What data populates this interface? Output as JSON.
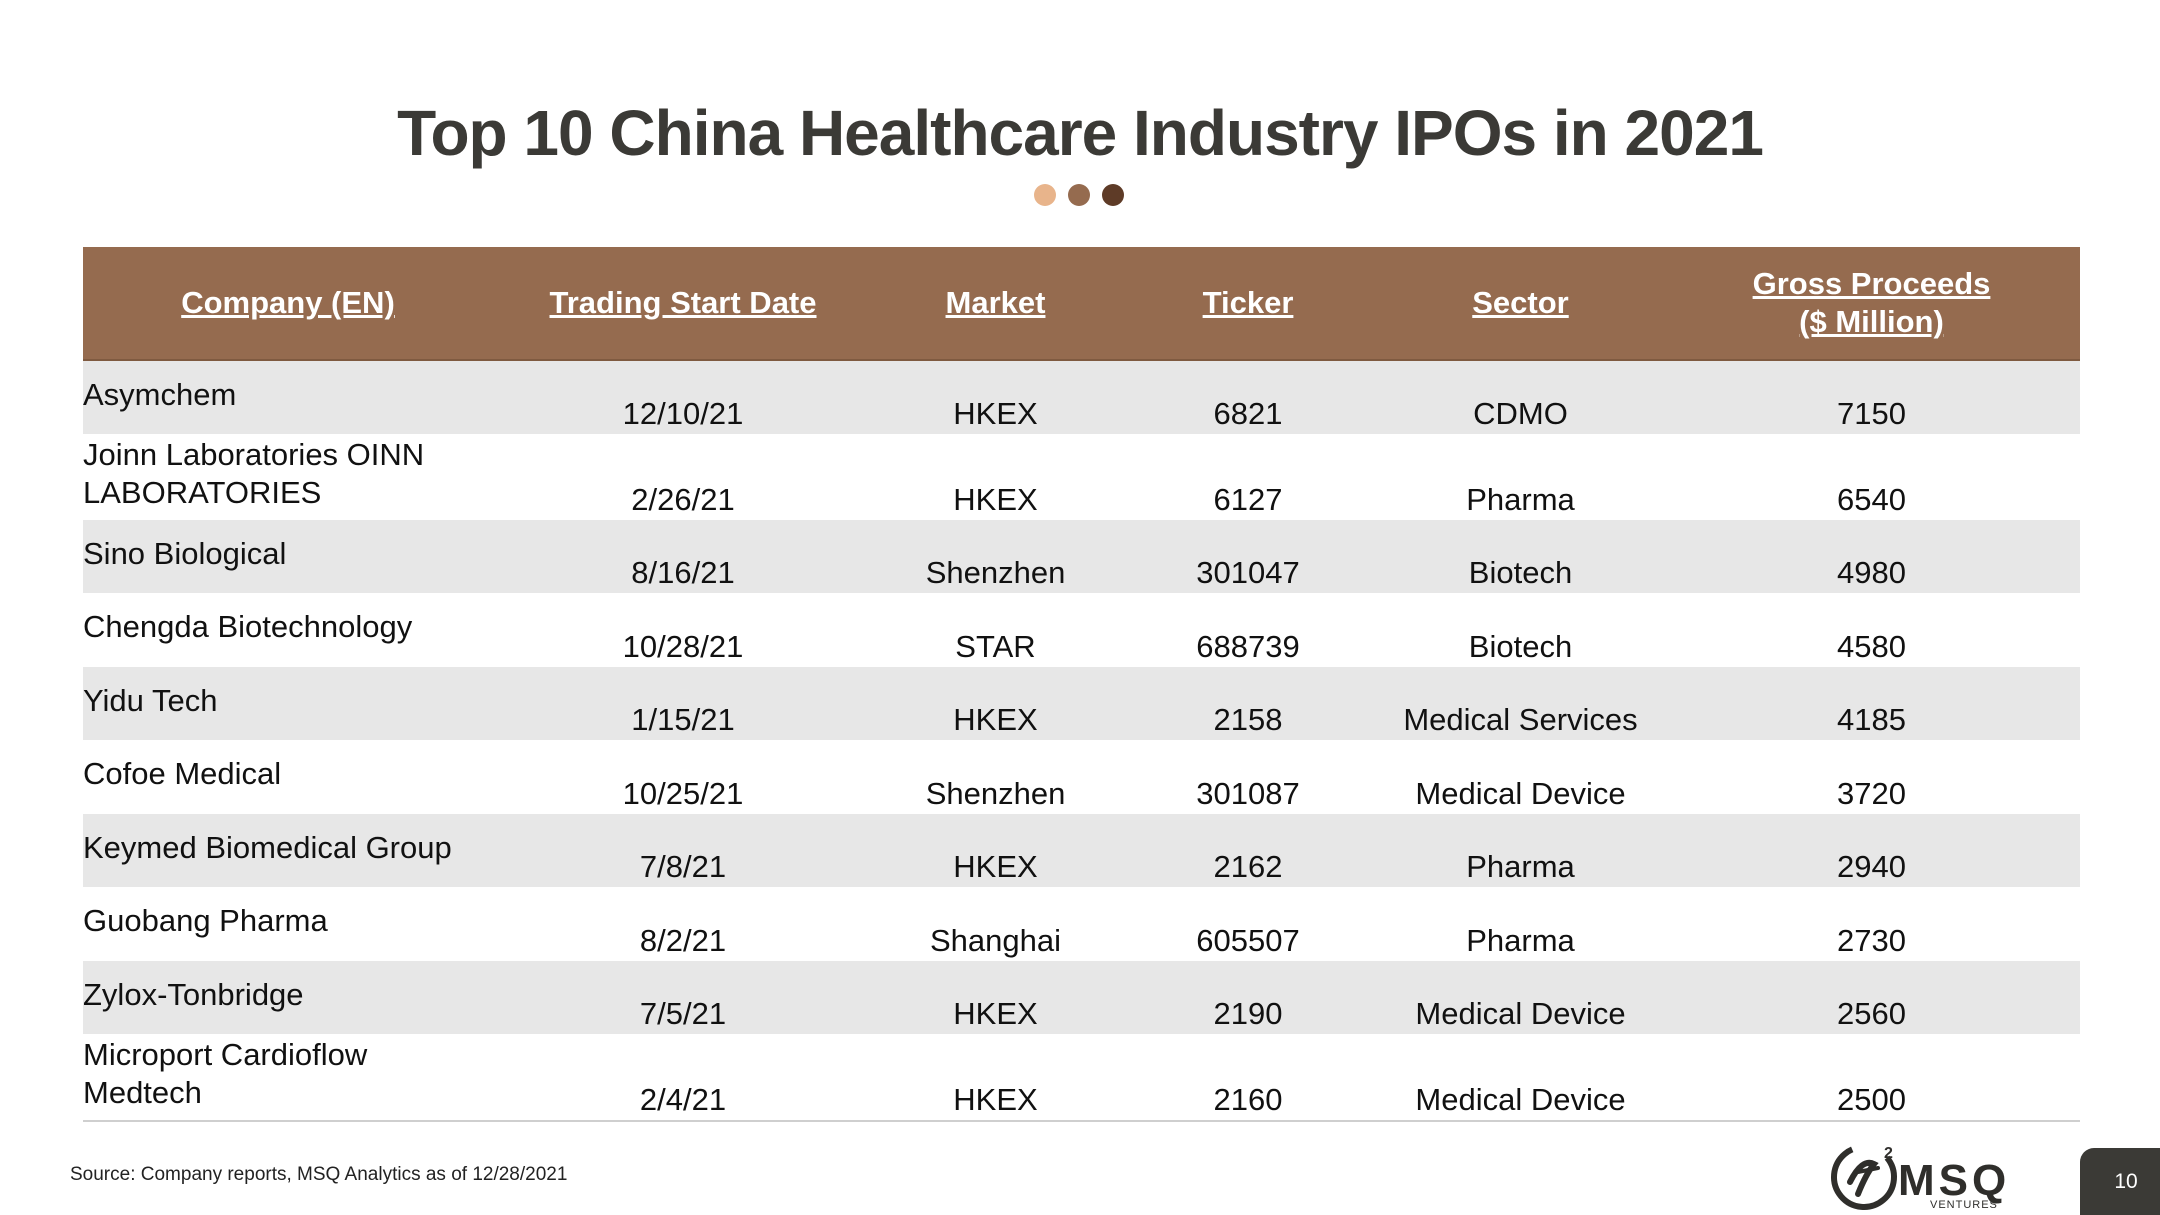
{
  "slide": {
    "title": "Top 10 China Healthcare Industry IPOs in 2021",
    "dot_colors": [
      "#e8b48b",
      "#956b4f",
      "#5e3b27"
    ],
    "source": "Source: Company reports, MSQ Analytics as of 12/28/2021",
    "page_number": "10",
    "logo": {
      "name": "MSQ",
      "sub": "VENTURES",
      "mark": "msq-ventures-logo"
    }
  },
  "table": {
    "headers": [
      {
        "line1": "Company (EN)",
        "line2": ""
      },
      {
        "line1": "Trading Start Date",
        "line2": ""
      },
      {
        "line1": "Market",
        "line2": ""
      },
      {
        "line1": "Ticker",
        "line2": ""
      },
      {
        "line1": "Sector",
        "line2": ""
      },
      {
        "line1": "Gross Proceeds ",
        "line2": "($ Million)"
      }
    ],
    "header_color": "#956b4f",
    "rows": [
      {
        "company": "Asymchem",
        "date": "12/10/21",
        "market": "HKEX",
        "ticker": "6821",
        "sector": "CDMO",
        "proceeds": "7150"
      },
      {
        "company": "Joinn Laboratories OINN LABORATORIES",
        "date": "2/26/21",
        "market": "HKEX",
        "ticker": "6127",
        "sector": "Pharma",
        "proceeds": "6540"
      },
      {
        "company": "Sino Biological",
        "date": "8/16/21",
        "market": "Shenzhen",
        "ticker": "301047",
        "sector": "Biotech",
        "proceeds": "4980"
      },
      {
        "company": "Chengda Biotechnology",
        "date": "10/28/21",
        "market": "STAR",
        "ticker": "688739",
        "sector": "Biotech",
        "proceeds": "4580"
      },
      {
        "company": "Yidu Tech",
        "date": "1/15/21",
        "market": "HKEX",
        "ticker": "2158",
        "sector": "Medical Services",
        "proceeds": "4185"
      },
      {
        "company": "Cofoe Medical",
        "date": "10/25/21",
        "market": "Shenzhen",
        "ticker": "301087",
        "sector": "Medical Device",
        "proceeds": "3720"
      },
      {
        "company": "Keymed Biomedical Group",
        "date": "7/8/21",
        "market": "HKEX",
        "ticker": "2162",
        "sector": "Pharma",
        "proceeds": "2940"
      },
      {
        "company": "Guobang Pharma",
        "date": "8/2/21",
        "market": "Shanghai",
        "ticker": "605507",
        "sector": "Pharma",
        "proceeds": "2730"
      },
      {
        "company": "Zylox-Tonbridge",
        "date": "7/5/21",
        "market": "HKEX",
        "ticker": "2190",
        "sector": "Medical Device",
        "proceeds": "2560"
      },
      {
        "company": "Microport Cardioflow Medtech",
        "date": "2/4/21",
        "market": "HKEX",
        "ticker": "2160",
        "sector": "Medical Device",
        "proceeds": "2500"
      }
    ]
  }
}
